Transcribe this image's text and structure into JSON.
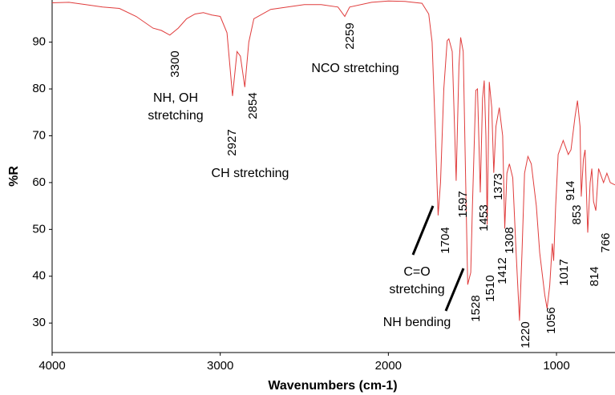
{
  "chart_data": {
    "type": "line",
    "x_label": "Wavenumbers (cm-1)",
    "y_label": "%R",
    "color": "#e03c3c",
    "xlim": [
      4000,
      652
    ],
    "ylim": [
      23.7,
      99
    ],
    "xticks": [
      4000,
      3000,
      2000,
      1000
    ],
    "yticks": [
      30,
      40,
      50,
      60,
      70,
      80,
      90
    ],
    "x": [
      4000,
      3900,
      3800,
      3700,
      3600,
      3500,
      3400,
      3350,
      3300,
      3250,
      3200,
      3150,
      3100,
      3050,
      3000,
      2960,
      2927,
      2900,
      2880,
      2854,
      2830,
      2800,
      2700,
      2600,
      2500,
      2400,
      2300,
      2259,
      2230,
      2100,
      2000,
      1900,
      1800,
      1760,
      1740,
      1720,
      1704,
      1690,
      1670,
      1650,
      1640,
      1620,
      1597,
      1580,
      1570,
      1555,
      1540,
      1528,
      1510,
      1500,
      1480,
      1470,
      1453,
      1440,
      1430,
      1420,
      1412,
      1400,
      1385,
      1373,
      1360,
      1340,
      1320,
      1308,
      1295,
      1280,
      1260,
      1240,
      1220,
      1205,
      1190,
      1170,
      1150,
      1120,
      1100,
      1070,
      1056,
      1040,
      1025,
      1017,
      1005,
      990,
      960,
      930,
      914,
      890,
      875,
      860,
      853,
      840,
      830,
      814,
      800,
      790,
      780,
      766,
      750,
      720,
      700,
      680,
      652
    ],
    "values": [
      98.4,
      98.5,
      98,
      97.5,
      97.2,
      95.5,
      93,
      92.5,
      91.5,
      93,
      95,
      96,
      96.3,
      95.8,
      95.5,
      92,
      78.5,
      88,
      87,
      80.4,
      90,
      95,
      97,
      97.5,
      98,
      98,
      97.5,
      95.5,
      97.5,
      98.5,
      98.8,
      98.7,
      98.3,
      96,
      90,
      70,
      53,
      60,
      80,
      90.3,
      90.7,
      88,
      60.4,
      85,
      91,
      88,
      60,
      38.2,
      40.8,
      55,
      79.7,
      80,
      57.9,
      78,
      81.8,
      70,
      51,
      81.5,
      76,
      62.1,
      72,
      76,
      70,
      50.2,
      62,
      64,
      61,
      45,
      30.5,
      45,
      62,
      65.6,
      64,
      55,
      45,
      36,
      33.1,
      38,
      47,
      43.3,
      55,
      66,
      69,
      66,
      67,
      74,
      77.5,
      72,
      57,
      65,
      67,
      49.3,
      60,
      63,
      56,
      54,
      63,
      60,
      62,
      60,
      59.5
    ],
    "peak_labels": [
      3300,
      2927,
      2854,
      2259,
      1704,
      1597,
      1528,
      1510,
      1453,
      1412,
      1373,
      1308,
      1220,
      1056,
      1017,
      914,
      853,
      814,
      766
    ],
    "annotations": [
      {
        "lines": [
          "NH, OH",
          "stretching"
        ]
      },
      {
        "lines": [
          "CH stretching"
        ]
      },
      {
        "lines": [
          "NCO stretching"
        ]
      },
      {
        "lines": [
          "C=O",
          "stretching"
        ]
      },
      {
        "lines": [
          "NH bending"
        ]
      }
    ]
  }
}
